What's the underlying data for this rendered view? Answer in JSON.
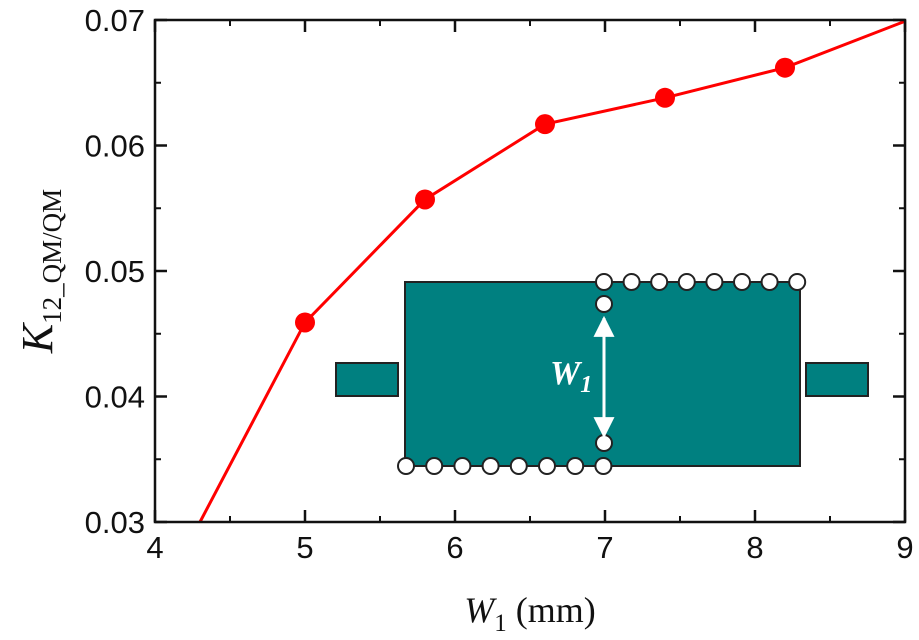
{
  "chart_data": {
    "type": "line",
    "series": [
      {
        "marker_color": "#ff0000",
        "points": [
          {
            "x": 5.0,
            "y": 0.0459,
            "marker": true
          },
          {
            "x": 5.8,
            "y": 0.0557,
            "marker": true
          },
          {
            "x": 6.6,
            "y": 0.0617,
            "marker": true
          },
          {
            "x": 7.4,
            "y": 0.0638,
            "marker": true
          },
          {
            "x": 8.2,
            "y": 0.0662,
            "marker": true
          },
          {
            "x": 4.3,
            "y": 0.03,
            "marker": false
          },
          {
            "x": 9.0,
            "y": 0.0699,
            "marker": false
          }
        ]
      }
    ],
    "line_color": "#ff0000",
    "xlabel": {
      "var": "W",
      "sub": "1",
      "unit": " (mm)"
    },
    "ylabel": {
      "var": "K",
      "sub": "12_QM/QM"
    },
    "xlim": [
      4,
      9
    ],
    "ylim": [
      0.03,
      0.07
    ],
    "xticks": [
      {
        "value": 4,
        "label": "4"
      },
      {
        "value": 5,
        "label": "5"
      },
      {
        "value": 6,
        "label": "6"
      },
      {
        "value": 7,
        "label": "7"
      },
      {
        "value": 8,
        "label": "8"
      },
      {
        "value": 9,
        "label": "9"
      }
    ],
    "yticks": [
      {
        "value": 0.03,
        "label": "0.03"
      },
      {
        "value": 0.04,
        "label": "0.04"
      },
      {
        "value": 0.05,
        "label": "0.05"
      },
      {
        "value": 0.06,
        "label": "0.06"
      },
      {
        "value": 0.07,
        "label": "0.07"
      }
    ],
    "grid": false,
    "inset": {
      "type": "resonator-diagram",
      "fill_color": "#008080",
      "label": {
        "var": "W",
        "sub": "1"
      }
    }
  }
}
